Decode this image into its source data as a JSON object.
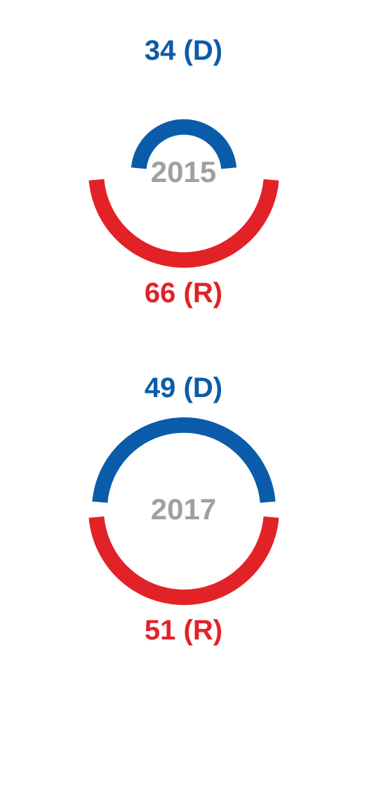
{
  "charts": [
    {
      "year": "2015",
      "top": {
        "value": 34,
        "party": "D",
        "label": "34 (D)",
        "color": "#0a5caa"
      },
      "bottom": {
        "value": 66,
        "party": "R",
        "label": "66 (R)",
        "color": "#e22227"
      },
      "year_color": "#a0a0a0",
      "stroke_width": 22,
      "svg_size": 280,
      "gap_deg": 10
    },
    {
      "year": "2017",
      "top": {
        "value": 49,
        "party": "D",
        "label": "49 (D)",
        "color": "#0a5caa"
      },
      "bottom": {
        "value": 51,
        "party": "R",
        "label": "51 (R)",
        "color": "#e22227"
      },
      "year_color": "#a0a0a0",
      "stroke_width": 22,
      "svg_size": 280,
      "gap_deg": 10
    }
  ],
  "background_color": "#ffffff",
  "label_fontsize": 40,
  "year_fontsize": 42
}
